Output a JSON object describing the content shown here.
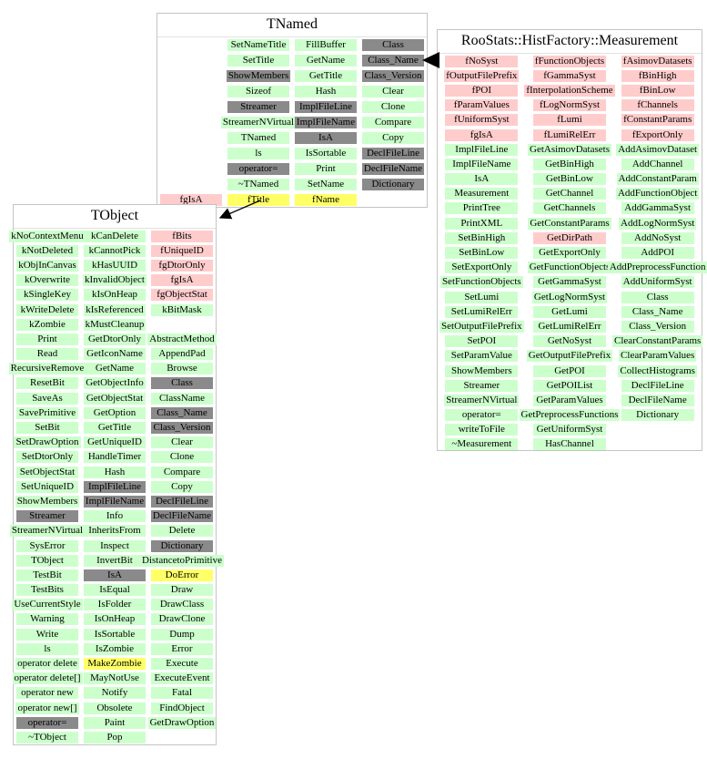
{
  "colors": {
    "method_bg": "#ccffcc",
    "field_bg": "#ffcccc",
    "special_bg": "#8a8a8a",
    "highlight_bg": "#ffff66",
    "arrow": "#000000",
    "border": "#c4c4c4"
  },
  "relations": [
    {
      "from": "TNamed",
      "to": "TObject",
      "type": "inheritance"
    },
    {
      "from": "RooStats::HistFactory::Measurement",
      "to": "TNamed",
      "type": "inheritance"
    }
  ],
  "tnamed": {
    "title": "TNamed",
    "columns": [
      [
        [
          "",
          ""
        ],
        [
          "",
          ""
        ],
        [
          "",
          ""
        ],
        [
          "",
          ""
        ],
        [
          "",
          ""
        ],
        [
          "",
          ""
        ],
        [
          "",
          ""
        ],
        [
          "",
          ""
        ],
        [
          "",
          ""
        ],
        [
          "",
          ""
        ],
        [
          "fgIsA",
          "p"
        ]
      ],
      [
        [
          "SetNameTitle",
          "g"
        ],
        [
          "SetTitle",
          "g"
        ],
        [
          "ShowMembers",
          "x"
        ],
        [
          "Sizeof",
          "g"
        ],
        [
          "Streamer",
          "x"
        ],
        [
          "StreamerNVirtual",
          "g"
        ],
        [
          "TNamed",
          "g"
        ],
        [
          "ls",
          "g"
        ],
        [
          "operator=",
          "x"
        ],
        [
          "~TNamed",
          "g"
        ],
        [
          "fTitle",
          "y"
        ]
      ],
      [
        [
          "FillBuffer",
          "g"
        ],
        [
          "GetName",
          "g"
        ],
        [
          "GetTitle",
          "g"
        ],
        [
          "Hash",
          "g"
        ],
        [
          "ImplFileLine",
          "x"
        ],
        [
          "ImplFileName",
          "x"
        ],
        [
          "IsA",
          "x"
        ],
        [
          "IsSortable",
          "g"
        ],
        [
          "Print",
          "g"
        ],
        [
          "SetName",
          "g"
        ],
        [
          "fName",
          "y"
        ]
      ],
      [
        [
          "Class",
          "x"
        ],
        [
          "Class_Name",
          "x"
        ],
        [
          "Class_Version",
          "x"
        ],
        [
          "Clear",
          "g"
        ],
        [
          "Clone",
          "g"
        ],
        [
          "Compare",
          "g"
        ],
        [
          "Copy",
          "g"
        ],
        [
          "DeclFileLine",
          "x"
        ],
        [
          "DeclFileName",
          "x"
        ],
        [
          "Dictionary",
          "x"
        ],
        [
          "",
          ""
        ]
      ]
    ]
  },
  "tobject": {
    "title": "TObject",
    "columns": [
      [
        [
          "kNoContextMenu",
          "g"
        ],
        [
          "kNotDeleted",
          "g"
        ],
        [
          "kObjInCanvas",
          "g"
        ],
        [
          "kOverwrite",
          "g"
        ],
        [
          "kSingleKey",
          "g"
        ],
        [
          "kWriteDelete",
          "g"
        ],
        [
          "kZombie",
          "g"
        ],
        [
          "Print",
          "g"
        ],
        [
          "Read",
          "g"
        ],
        [
          "RecursiveRemove",
          "g"
        ],
        [
          "ResetBit",
          "g"
        ],
        [
          "SaveAs",
          "g"
        ],
        [
          "SavePrimitive",
          "g"
        ],
        [
          "SetBit",
          "g"
        ],
        [
          "SetDrawOption",
          "g"
        ],
        [
          "SetDtorOnly",
          "g"
        ],
        [
          "SetObjectStat",
          "g"
        ],
        [
          "SetUniqueID",
          "g"
        ],
        [
          "ShowMembers",
          "g"
        ],
        [
          "Streamer",
          "x"
        ],
        [
          "StreamerNVirtual",
          "g"
        ],
        [
          "SysError",
          "g"
        ],
        [
          "TObject",
          "g"
        ],
        [
          "TestBit",
          "g"
        ],
        [
          "TestBits",
          "g"
        ],
        [
          "UseCurrentStyle",
          "g"
        ],
        [
          "Warning",
          "g"
        ],
        [
          "Write",
          "g"
        ],
        [
          "ls",
          "g"
        ],
        [
          "operator delete",
          "g"
        ],
        [
          "operator delete[]",
          "g"
        ],
        [
          "operator new",
          "g"
        ],
        [
          "operator new[]",
          "g"
        ],
        [
          "operator=",
          "x"
        ],
        [
          "~TObject",
          "g"
        ]
      ],
      [
        [
          "kCanDelete",
          "g"
        ],
        [
          "kCannotPick",
          "g"
        ],
        [
          "kHasUUID",
          "g"
        ],
        [
          "kInvalidObject",
          "g"
        ],
        [
          "kIsOnHeap",
          "g"
        ],
        [
          "kIsReferenced",
          "g"
        ],
        [
          "kMustCleanup",
          "g"
        ],
        [
          "GetDtorOnly",
          "g"
        ],
        [
          "GetIconName",
          "g"
        ],
        [
          "GetName",
          "g"
        ],
        [
          "GetObjectInfo",
          "g"
        ],
        [
          "GetObjectStat",
          "g"
        ],
        [
          "GetOption",
          "g"
        ],
        [
          "GetTitle",
          "g"
        ],
        [
          "GetUniqueID",
          "g"
        ],
        [
          "HandleTimer",
          "g"
        ],
        [
          "Hash",
          "g"
        ],
        [
          "ImplFileLine",
          "x"
        ],
        [
          "ImplFileName",
          "x"
        ],
        [
          "Info",
          "g"
        ],
        [
          "InheritsFrom",
          "g"
        ],
        [
          "Inspect",
          "g"
        ],
        [
          "InvertBit",
          "g"
        ],
        [
          "IsA",
          "x"
        ],
        [
          "IsEqual",
          "g"
        ],
        [
          "IsFolder",
          "g"
        ],
        [
          "IsOnHeap",
          "g"
        ],
        [
          "IsSortable",
          "g"
        ],
        [
          "IsZombie",
          "g"
        ],
        [
          "MakeZombie",
          "y"
        ],
        [
          "MayNotUse",
          "g"
        ],
        [
          "Notify",
          "g"
        ],
        [
          "Obsolete",
          "g"
        ],
        [
          "Paint",
          "g"
        ],
        [
          "Pop",
          "g"
        ]
      ],
      [
        [
          "fBits",
          "p"
        ],
        [
          "fUniqueID",
          "p"
        ],
        [
          "fgDtorOnly",
          "p"
        ],
        [
          "fgIsA",
          "p"
        ],
        [
          "fgObjectStat",
          "p"
        ],
        [
          "kBitMask",
          "g"
        ],
        [
          "",
          ""
        ],
        [
          "AbstractMethod",
          "g"
        ],
        [
          "AppendPad",
          "g"
        ],
        [
          "Browse",
          "g"
        ],
        [
          "Class",
          "x"
        ],
        [
          "ClassName",
          "g"
        ],
        [
          "Class_Name",
          "x"
        ],
        [
          "Class_Version",
          "x"
        ],
        [
          "Clear",
          "g"
        ],
        [
          "Clone",
          "g"
        ],
        [
          "Compare",
          "g"
        ],
        [
          "Copy",
          "g"
        ],
        [
          "DeclFileLine",
          "x"
        ],
        [
          "DeclFileName",
          "x"
        ],
        [
          "Delete",
          "g"
        ],
        [
          "Dictionary",
          "x"
        ],
        [
          "DistancetoPrimitive",
          "g"
        ],
        [
          "DoError",
          "y"
        ],
        [
          "Draw",
          "g"
        ],
        [
          "DrawClass",
          "g"
        ],
        [
          "DrawClone",
          "g"
        ],
        [
          "Dump",
          "g"
        ],
        [
          "Error",
          "g"
        ],
        [
          "Execute",
          "g"
        ],
        [
          "ExecuteEvent",
          "g"
        ],
        [
          "Fatal",
          "g"
        ],
        [
          "FindObject",
          "g"
        ],
        [
          "GetDrawOption",
          "g"
        ],
        [
          "",
          ""
        ]
      ]
    ]
  },
  "measurement": {
    "title": "RooStats::HistFactory::Measurement",
    "columns": [
      [
        [
          "fNoSyst",
          "p"
        ],
        [
          "fOutputFilePrefix",
          "p"
        ],
        [
          "fPOI",
          "p"
        ],
        [
          "fParamValues",
          "p"
        ],
        [
          "fUniformSyst",
          "p"
        ],
        [
          "fgIsA",
          "p"
        ],
        [
          "ImplFileLine",
          "g"
        ],
        [
          "ImplFileName",
          "g"
        ],
        [
          "IsA",
          "g"
        ],
        [
          "Measurement",
          "g"
        ],
        [
          "PrintTree",
          "g"
        ],
        [
          "PrintXML",
          "g"
        ],
        [
          "SetBinHigh",
          "g"
        ],
        [
          "SetBinLow",
          "g"
        ],
        [
          "SetExportOnly",
          "g"
        ],
        [
          "SetFunctionObjects",
          "g"
        ],
        [
          "SetLumi",
          "g"
        ],
        [
          "SetLumiRelErr",
          "g"
        ],
        [
          "SetOutputFilePrefix",
          "g"
        ],
        [
          "SetPOI",
          "g"
        ],
        [
          "SetParamValue",
          "g"
        ],
        [
          "ShowMembers",
          "g"
        ],
        [
          "Streamer",
          "g"
        ],
        [
          "StreamerNVirtual",
          "g"
        ],
        [
          "operator=",
          "g"
        ],
        [
          "writeToFile",
          "g"
        ],
        [
          "~Measurement",
          "g"
        ]
      ],
      [
        [
          "fFunctionObjects",
          "p"
        ],
        [
          "fGammaSyst",
          "p"
        ],
        [
          "fInterpolationScheme",
          "p"
        ],
        [
          "fLogNormSyst",
          "p"
        ],
        [
          "fLumi",
          "p"
        ],
        [
          "fLumiRelErr",
          "p"
        ],
        [
          "GetAsimovDatasets",
          "g"
        ],
        [
          "GetBinHigh",
          "g"
        ],
        [
          "GetBinLow",
          "g"
        ],
        [
          "GetChannel",
          "g"
        ],
        [
          "GetChannels",
          "g"
        ],
        [
          "GetConstantParams",
          "g"
        ],
        [
          "GetDirPath",
          "p"
        ],
        [
          "GetExportOnly",
          "g"
        ],
        [
          "GetFunctionObjects",
          "g"
        ],
        [
          "GetGammaSyst",
          "g"
        ],
        [
          "GetLogNormSyst",
          "g"
        ],
        [
          "GetLumi",
          "g"
        ],
        [
          "GetLumiRelErr",
          "g"
        ],
        [
          "GetNoSyst",
          "g"
        ],
        [
          "GetOutputFilePrefix",
          "g"
        ],
        [
          "GetPOI",
          "g"
        ],
        [
          "GetPOIList",
          "g"
        ],
        [
          "GetParamValues",
          "g"
        ],
        [
          "GetPreprocessFunctions",
          "g"
        ],
        [
          "GetUniformSyst",
          "g"
        ],
        [
          "HasChannel",
          "g"
        ]
      ],
      [
        [
          "fAsimovDatasets",
          "p"
        ],
        [
          "fBinHigh",
          "p"
        ],
        [
          "fBinLow",
          "p"
        ],
        [
          "fChannels",
          "p"
        ],
        [
          "fConstantParams",
          "p"
        ],
        [
          "fExportOnly",
          "p"
        ],
        [
          "AddAsimovDataset",
          "g"
        ],
        [
          "AddChannel",
          "g"
        ],
        [
          "AddConstantParam",
          "g"
        ],
        [
          "AddFunctionObject",
          "g"
        ],
        [
          "AddGammaSyst",
          "g"
        ],
        [
          "AddLogNormSyst",
          "g"
        ],
        [
          "AddNoSyst",
          "g"
        ],
        [
          "AddPOI",
          "g"
        ],
        [
          "AddPreprocessFunction",
          "g"
        ],
        [
          "AddUniformSyst",
          "g"
        ],
        [
          "Class",
          "g"
        ],
        [
          "Class_Name",
          "g"
        ],
        [
          "Class_Version",
          "g"
        ],
        [
          "ClearConstantParams",
          "g"
        ],
        [
          "ClearParamValues",
          "g"
        ],
        [
          "CollectHistograms",
          "g"
        ],
        [
          "DeclFileLine",
          "g"
        ],
        [
          "DeclFileName",
          "g"
        ],
        [
          "Dictionary",
          "g"
        ],
        [
          "",
          ""
        ],
        [
          "",
          ""
        ]
      ]
    ]
  }
}
